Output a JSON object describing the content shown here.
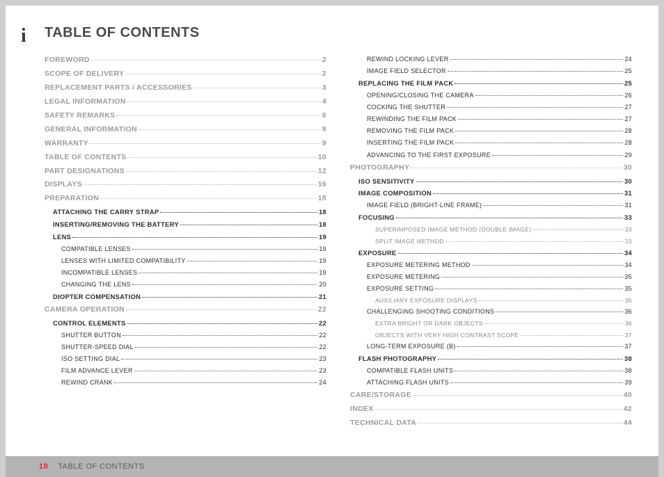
{
  "title": "TABLE OF CONTENTS",
  "info_icon": "i",
  "footer": {
    "page": "10",
    "section": "TABLE OF CONTENTS"
  },
  "col1": [
    {
      "level": 0,
      "label": "FOREWORD",
      "page": "2"
    },
    {
      "level": 0,
      "label": "SCOPE OF DELIVERY",
      "page": "2"
    },
    {
      "level": 0,
      "label": "REPLACEMENT PARTS / ACCESSORIES",
      "page": "3"
    },
    {
      "level": 0,
      "label": "LEGAL INFORMATION",
      "page": "4"
    },
    {
      "level": 0,
      "label": "SAFETY REMARKS",
      "page": "6"
    },
    {
      "level": 0,
      "label": "GENERAL INFORMATION",
      "page": "8"
    },
    {
      "level": 0,
      "label": "WARRANTY",
      "page": "9"
    },
    {
      "level": 0,
      "label": "TABLE OF CONTENTS",
      "page": "10"
    },
    {
      "level": 0,
      "label": "PART DESIGNATIONS",
      "page": "12"
    },
    {
      "level": 0,
      "label": "DISPLAYS",
      "page": "16"
    },
    {
      "level": 0,
      "label": "PREPARATION",
      "page": "18"
    },
    {
      "level": 1,
      "label": "ATTACHING THE CARRY STRAP",
      "page": "18"
    },
    {
      "level": 1,
      "label": "INSERTING/REMOVING THE BATTERY",
      "page": "18"
    },
    {
      "level": 1,
      "label": "LENS",
      "page": "19"
    },
    {
      "level": 2,
      "label": "COMPATIBLE LENSES",
      "page": "19"
    },
    {
      "level": 2,
      "label": "LENSES WITH LIMITED COMPATIBILITY",
      "page": "19"
    },
    {
      "level": 2,
      "label": "INCOMPATIBLE LENSES",
      "page": "19"
    },
    {
      "level": 2,
      "label": "CHANGING THE LENS",
      "page": "20"
    },
    {
      "level": 1,
      "label": "DIOPTER COMPENSATION",
      "page": "21"
    },
    {
      "level": 0,
      "label": "CAMERA OPERATION",
      "page": "22"
    },
    {
      "level": 1,
      "label": "CONTROL ELEMENTS",
      "page": "22"
    },
    {
      "level": 2,
      "label": "SHUTTER BUTTON",
      "page": "22"
    },
    {
      "level": 2,
      "label": "SHUTTER-SPEED DIAL",
      "page": "22"
    },
    {
      "level": 2,
      "label": "ISO SETTING DIAL",
      "page": "23"
    },
    {
      "level": 2,
      "label": "FILM ADVANCE LEVER",
      "page": "23"
    },
    {
      "level": 2,
      "label": "REWIND CRANK",
      "page": "24"
    }
  ],
  "col2": [
    {
      "level": 2,
      "label": "REWIND LOCKING LEVER",
      "page": "24"
    },
    {
      "level": 2,
      "label": "IMAGE FIELD SELECTOR",
      "page": "25"
    },
    {
      "level": 1,
      "label": "REPLACING THE FILM PACK",
      "page": "25"
    },
    {
      "level": 2,
      "label": "OPENING/CLOSING THE CAMERA",
      "page": "26"
    },
    {
      "level": 2,
      "label": "COCKING THE SHUTTER",
      "page": "27"
    },
    {
      "level": 2,
      "label": "REWINDING THE FILM PACK",
      "page": "27"
    },
    {
      "level": 2,
      "label": "REMOVING THE FILM PACK",
      "page": "28"
    },
    {
      "level": 2,
      "label": "INSERTING THE FILM PACK",
      "page": "28"
    },
    {
      "level": 2,
      "label": "ADVANCING TO THE FIRST EXPOSURE",
      "page": "29"
    },
    {
      "level": 0,
      "label": "PHOTOGRAPHY",
      "page": "30"
    },
    {
      "level": 1,
      "label": "ISO SENSITIVITY",
      "page": "30"
    },
    {
      "level": 1,
      "label": "IMAGE COMPOSITION",
      "page": "31"
    },
    {
      "level": 2,
      "label": "IMAGE FIELD (BRIGHT-LINE FRAME)",
      "page": "31"
    },
    {
      "level": 1,
      "label": "FOCUSING",
      "page": "33"
    },
    {
      "level": 3,
      "label": "SUPERIMPOSED IMAGE METHOD (DOUBLE IMAGE)",
      "page": "33"
    },
    {
      "level": 3,
      "label": "SPLIT IMAGE METHOD",
      "page": "33"
    },
    {
      "level": 1,
      "label": "EXPOSURE",
      "page": "34"
    },
    {
      "level": 2,
      "label": "EXPOSURE METERING METHOD",
      "page": "34"
    },
    {
      "level": 2,
      "label": "EXPOSURE METERING",
      "page": "35"
    },
    {
      "level": 2,
      "label": "EXPOSURE SETTING",
      "page": "35"
    },
    {
      "level": 3,
      "label": "AUXILIARY EXPOSURE DISPLAYS",
      "page": "35"
    },
    {
      "level": 2,
      "label": "CHALLENGING SHOOTING CONDITIONS",
      "page": "36"
    },
    {
      "level": 3,
      "label": "EXTRA BRIGHT OR DARK OBJECTS",
      "page": "36"
    },
    {
      "level": 3,
      "label": "OBJECTS WITH VERY HIGH CONTRAST SCOPE",
      "page": "37"
    },
    {
      "level": 2,
      "label": "LONG-TERM EXPOSURE (B)",
      "page": "37"
    },
    {
      "level": 1,
      "label": "FLASH PHOTOGRAPHY",
      "page": "38"
    },
    {
      "level": 2,
      "label": "COMPATIBLE FLASH UNITS",
      "page": "38"
    },
    {
      "level": 2,
      "label": "ATTACHING FLASH UNITS",
      "page": "39"
    },
    {
      "level": 0,
      "label": "CARE/STORAGE",
      "page": "40"
    },
    {
      "level": 0,
      "label": "INDEX",
      "page": "42"
    },
    {
      "level": 0,
      "label": "TECHNICAL DATA",
      "page": "44"
    }
  ]
}
